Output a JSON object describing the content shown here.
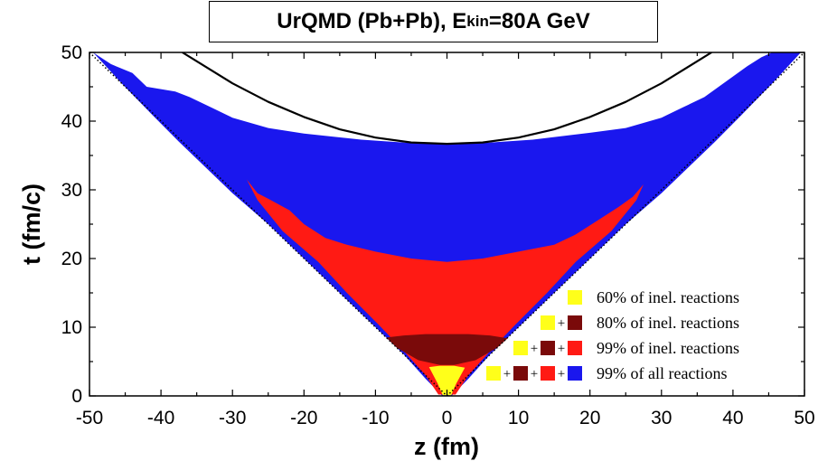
{
  "title": {
    "prefix": "UrQMD (Pb+Pb), E",
    "subscript": "kin",
    "suffix": "=80A GeV"
  },
  "chart_data": {
    "type": "heatmap",
    "title": "UrQMD (Pb+Pb), E_kin=80A GeV",
    "xlabel": "z (fm)",
    "ylabel": "t (fm/c)",
    "xlim": [
      -50,
      50
    ],
    "ylim": [
      0,
      50
    ],
    "x_ticks": [
      -50,
      -40,
      -30,
      -20,
      -10,
      0,
      10,
      20,
      30,
      40,
      50
    ],
    "y_ticks": [
      0,
      10,
      20,
      30,
      40,
      50
    ],
    "x_tick_labels": [
      "-50",
      "-40",
      "-30",
      "-20",
      "-10",
      "0",
      "10",
      "20",
      "30",
      "40",
      "50"
    ],
    "y_tick_labels": [
      "0",
      "10",
      "20",
      "30",
      "40",
      "50"
    ],
    "regions": [
      {
        "name": "99% of all reactions",
        "color": "#1a17ee",
        "points": [
          [
            -49.5,
            50
          ],
          [
            -47,
            48.3
          ],
          [
            -44,
            47
          ],
          [
            -42,
            45
          ],
          [
            -38,
            44.3
          ],
          [
            -36,
            43.5
          ],
          [
            -33,
            42
          ],
          [
            -30,
            40.5
          ],
          [
            -25,
            39
          ],
          [
            -20,
            38.2
          ],
          [
            -12,
            37.3
          ],
          [
            -5,
            36.8
          ],
          [
            0,
            36.7
          ],
          [
            5,
            36.8
          ],
          [
            12,
            37.3
          ],
          [
            20,
            38.3
          ],
          [
            25,
            39
          ],
          [
            30,
            40.5
          ],
          [
            33,
            42
          ],
          [
            36,
            43.5
          ],
          [
            38,
            45
          ],
          [
            40,
            46.5
          ],
          [
            42,
            48
          ],
          [
            44,
            49.3
          ],
          [
            45.5,
            50
          ],
          [
            49.5,
            50
          ],
          [
            45.5,
            45.5
          ],
          [
            41.3,
            41
          ],
          [
            37.5,
            37
          ],
          [
            34,
            33.5
          ],
          [
            30,
            29.5
          ],
          [
            25,
            25
          ],
          [
            20,
            20
          ],
          [
            15,
            15
          ],
          [
            10,
            10
          ],
          [
            6,
            6
          ],
          [
            3,
            2.5
          ],
          [
            0.7,
            0.05
          ],
          [
            -0.7,
            0.05
          ],
          [
            -3,
            2.5
          ],
          [
            -6,
            6
          ],
          [
            -10,
            10
          ],
          [
            -15,
            15
          ],
          [
            -20,
            20
          ],
          [
            -25,
            25
          ],
          [
            -30,
            29.5
          ],
          [
            -34,
            33.5
          ],
          [
            -37.5,
            37
          ],
          [
            -41.3,
            41
          ],
          [
            -45.5,
            45.5
          ]
        ]
      },
      {
        "name": "99% of inel. reactions",
        "color": "#ff1a14",
        "points": [
          [
            -28,
            31.5
          ],
          [
            -26.5,
            29.5
          ],
          [
            -25,
            28.7
          ],
          [
            -22,
            27
          ],
          [
            -20,
            25
          ],
          [
            -17,
            23
          ],
          [
            -14,
            22
          ],
          [
            -10,
            21
          ],
          [
            -5,
            20
          ],
          [
            0,
            19.5
          ],
          [
            5,
            20
          ],
          [
            10,
            21
          ],
          [
            15,
            22
          ],
          [
            18,
            23.5
          ],
          [
            21,
            25.5
          ],
          [
            24,
            27.5
          ],
          [
            26,
            29
          ],
          [
            27.5,
            30.8
          ],
          [
            26.5,
            28.5
          ],
          [
            23,
            24
          ],
          [
            18,
            19.5
          ],
          [
            14,
            15
          ],
          [
            9.5,
            10.3
          ],
          [
            6,
            6.5
          ],
          [
            3,
            3
          ],
          [
            1.2,
            0.2
          ],
          [
            -1.2,
            0.2
          ],
          [
            -3,
            3
          ],
          [
            -6,
            6.5
          ],
          [
            -9.5,
            10.3
          ],
          [
            -14,
            15
          ],
          [
            -18,
            19.5
          ],
          [
            -23,
            24
          ],
          [
            -26.5,
            28.5
          ]
        ]
      },
      {
        "name": "80% of inel. reactions",
        "color": "#7a0a0a",
        "points": [
          [
            -8.5,
            8.5
          ],
          [
            -6,
            8.8
          ],
          [
            -3,
            9
          ],
          [
            0,
            9
          ],
          [
            3,
            9
          ],
          [
            6,
            8.8
          ],
          [
            8.5,
            8.4
          ],
          [
            7,
            7
          ],
          [
            4,
            5.2
          ],
          [
            1,
            4.5
          ],
          [
            -1,
            4.5
          ],
          [
            -4,
            5.2
          ],
          [
            -7,
            7
          ]
        ]
      },
      {
        "name": "60% of inel. reactions",
        "color": "#ffff1a",
        "points": [
          [
            -2.5,
            4.2
          ],
          [
            -1,
            4.4
          ],
          [
            1,
            4.4
          ],
          [
            2.5,
            4.1
          ],
          [
            1.3,
            1.8
          ],
          [
            0.6,
            0.1
          ],
          [
            -0.6,
            0.1
          ],
          [
            -1.3,
            1.8
          ]
        ]
      }
    ],
    "black_curve": {
      "name": "freeze-out hyperbola",
      "points": [
        [
          -37,
          50
        ],
        [
          -30,
          45.5
        ],
        [
          -25,
          42.8
        ],
        [
          -20,
          40.6
        ],
        [
          -15,
          38.8
        ],
        [
          -10,
          37.6
        ],
        [
          -5,
          36.9
        ],
        [
          0,
          36.7
        ],
        [
          5,
          36.9
        ],
        [
          10,
          37.6
        ],
        [
          15,
          38.8
        ],
        [
          20,
          40.6
        ],
        [
          25,
          42.8
        ],
        [
          30,
          45.5
        ],
        [
          37,
          50
        ]
      ]
    },
    "light_cone": {
      "name": "light cone (dotted)",
      "left": [
        [
          -50,
          50
        ],
        [
          0,
          0
        ]
      ],
      "right": [
        [
          0,
          0
        ],
        [
          50,
          50
        ]
      ]
    },
    "legend": {
      "placement": "bottom-right",
      "entries": [
        {
          "label": "60% of inel. reactions",
          "swatches": [
            "#ffff1a"
          ]
        },
        {
          "label": "80% of inel. reactions",
          "swatches": [
            "#ffff1a",
            "#7a0a0a"
          ]
        },
        {
          "label": "99% of inel. reactions",
          "swatches": [
            "#ffff1a",
            "#7a0a0a",
            "#ff1a14"
          ]
        },
        {
          "label": "99% of all reactions",
          "swatches": [
            "#ffff1a",
            "#7a0a0a",
            "#ff1a14",
            "#1a17ee"
          ]
        }
      ],
      "separator": "+"
    }
  }
}
